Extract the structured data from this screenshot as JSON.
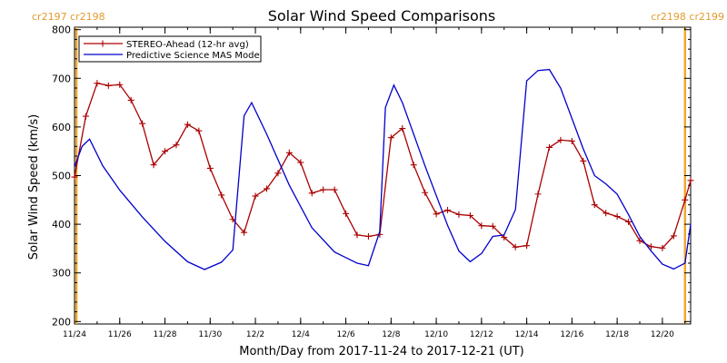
{
  "chart_data": {
    "type": "line",
    "title": "Solar Wind Speed Comparisons",
    "xlabel": "Month/Day from 2017-11-24 to 2017-12-21 (UT)",
    "ylabel": "Solar Wind Speed (km/s)",
    "xlim": [
      "2017-11-24T00:00",
      "2017-12-21T06:00"
    ],
    "ylim": [
      195,
      805
    ],
    "yticks": [
      200,
      300,
      400,
      500,
      600,
      700,
      800
    ],
    "xticks": [
      {
        "date": "2017-11-24",
        "label": "11/24"
      },
      {
        "date": "2017-11-26",
        "label": "11/26"
      },
      {
        "date": "2017-11-28",
        "label": "11/28"
      },
      {
        "date": "2017-11-30",
        "label": "11/30"
      },
      {
        "date": "2017-12-02",
        "label": "12/2"
      },
      {
        "date": "2017-12-04",
        "label": "12/4"
      },
      {
        "date": "2017-12-06",
        "label": "12/6"
      },
      {
        "date": "2017-12-08",
        "label": "12/8"
      },
      {
        "date": "2017-12-10",
        "label": "12/10"
      },
      {
        "date": "2017-12-12",
        "label": "12/12"
      },
      {
        "date": "2017-12-14",
        "label": "12/14"
      },
      {
        "date": "2017-12-16",
        "label": "12/16"
      },
      {
        "date": "2017-12-18",
        "label": "12/18"
      },
      {
        "date": "2017-12-20",
        "label": "12/20"
      }
    ],
    "carrington_left": {
      "date": "2017-11-24T02:00",
      "label": "cr2197 cr2198"
    },
    "carrington_right": {
      "date": "2017-12-21T00:00",
      "label": "cr2198 cr2199"
    },
    "legend_position": "top-left",
    "colors": {
      "stereo": "#aa0000",
      "model": "#0000cc",
      "carrington": "#f0a830"
    },
    "series": [
      {
        "name": "STEREO-Ahead (12-hr avg)",
        "marker": "plus",
        "points": [
          [
            "2017-11-24T00:00",
            497
          ],
          [
            "2017-11-24T12:00",
            622
          ],
          [
            "2017-11-25T00:00",
            690
          ],
          [
            "2017-11-25T12:00",
            685
          ],
          [
            "2017-11-26T00:00",
            687
          ],
          [
            "2017-11-26T12:00",
            655
          ],
          [
            "2017-11-27T00:00",
            607
          ],
          [
            "2017-11-27T12:00",
            522
          ],
          [
            "2017-11-28T00:00",
            550
          ],
          [
            "2017-11-28T12:00",
            563
          ],
          [
            "2017-11-29T00:00",
            605
          ],
          [
            "2017-11-29T12:00",
            592
          ],
          [
            "2017-11-30T00:00",
            515
          ],
          [
            "2017-11-30T12:00",
            460
          ],
          [
            "2017-12-01T00:00",
            410
          ],
          [
            "2017-12-01T12:00",
            383
          ],
          [
            "2017-12-02T00:00",
            458
          ],
          [
            "2017-12-02T12:00",
            473
          ],
          [
            "2017-12-03T00:00",
            505
          ],
          [
            "2017-12-03T12:00",
            547
          ],
          [
            "2017-12-04T00:00",
            527
          ],
          [
            "2017-12-04T12:00",
            464
          ],
          [
            "2017-12-05T00:00",
            471
          ],
          [
            "2017-12-05T12:00",
            471
          ],
          [
            "2017-12-06T00:00",
            422
          ],
          [
            "2017-12-06T12:00",
            378
          ],
          [
            "2017-12-07T00:00",
            375
          ],
          [
            "2017-12-07T12:00",
            379
          ],
          [
            "2017-12-08T00:00",
            578
          ],
          [
            "2017-12-08T12:00",
            597
          ],
          [
            "2017-12-09T00:00",
            522
          ],
          [
            "2017-12-09T12:00",
            465
          ],
          [
            "2017-12-10T00:00",
            421
          ],
          [
            "2017-12-10T12:00",
            429
          ],
          [
            "2017-12-11T00:00",
            420
          ],
          [
            "2017-12-11T12:00",
            418
          ],
          [
            "2017-12-12T00:00",
            397
          ],
          [
            "2017-12-12T12:00",
            396
          ],
          [
            "2017-12-13T00:00",
            373
          ],
          [
            "2017-12-13T12:00",
            353
          ],
          [
            "2017-12-14T00:00",
            356
          ],
          [
            "2017-12-14T12:00",
            462
          ],
          [
            "2017-12-15T00:00",
            558
          ],
          [
            "2017-12-15T12:00",
            573
          ],
          [
            "2017-12-16T00:00",
            571
          ],
          [
            "2017-12-16T12:00",
            530
          ],
          [
            "2017-12-17T00:00",
            440
          ],
          [
            "2017-12-17T12:00",
            423
          ],
          [
            "2017-12-18T00:00",
            416
          ],
          [
            "2017-12-18T12:00",
            405
          ],
          [
            "2017-12-19T00:00",
            366
          ],
          [
            "2017-12-19T12:00",
            354
          ],
          [
            "2017-12-20T00:00",
            351
          ],
          [
            "2017-12-20T12:00",
            376
          ],
          [
            "2017-12-21T00:00",
            450
          ],
          [
            "2017-12-21T06:00",
            490
          ]
        ]
      },
      {
        "name": "Predictive Science MAS Model",
        "marker": "none",
        "points": [
          [
            "2017-11-24T00:00",
            518
          ],
          [
            "2017-11-24T08:00",
            560
          ],
          [
            "2017-11-24T16:00",
            575
          ],
          [
            "2017-11-25T06:00",
            520
          ],
          [
            "2017-11-26T00:00",
            470
          ],
          [
            "2017-11-27T00:00",
            415
          ],
          [
            "2017-11-28T00:00",
            365
          ],
          [
            "2017-11-29T00:00",
            323
          ],
          [
            "2017-11-29T18:00",
            307
          ],
          [
            "2017-11-30T12:00",
            322
          ],
          [
            "2017-12-01T00:00",
            347
          ],
          [
            "2017-12-01T12:00",
            623
          ],
          [
            "2017-12-01T20:00",
            650
          ],
          [
            "2017-12-02T12:00",
            585
          ],
          [
            "2017-12-03T12:00",
            480
          ],
          [
            "2017-12-04T12:00",
            393
          ],
          [
            "2017-12-05T12:00",
            343
          ],
          [
            "2017-12-06T12:00",
            320
          ],
          [
            "2017-12-07T00:00",
            315
          ],
          [
            "2017-12-07T12:00",
            385
          ],
          [
            "2017-12-07T18:00",
            640
          ],
          [
            "2017-12-08T03:00",
            686
          ],
          [
            "2017-12-08T12:00",
            650
          ],
          [
            "2017-12-09T12:00",
            520
          ],
          [
            "2017-12-10T12:00",
            398
          ],
          [
            "2017-12-11T00:00",
            345
          ],
          [
            "2017-12-11T12:00",
            323
          ],
          [
            "2017-12-12T00:00",
            340
          ],
          [
            "2017-12-12T12:00",
            375
          ],
          [
            "2017-12-13T00:00",
            378
          ],
          [
            "2017-12-13T12:00",
            430
          ],
          [
            "2017-12-14T00:00",
            695
          ],
          [
            "2017-12-14T12:00",
            716
          ],
          [
            "2017-12-15T00:00",
            718
          ],
          [
            "2017-12-15T12:00",
            680
          ],
          [
            "2017-12-16T12:00",
            555
          ],
          [
            "2017-12-17T00:00",
            500
          ],
          [
            "2017-12-17T12:00",
            483
          ],
          [
            "2017-12-18T00:00",
            462
          ],
          [
            "2017-12-18T12:00",
            420
          ],
          [
            "2017-12-19T00:00",
            375
          ],
          [
            "2017-12-19T12:00",
            345
          ],
          [
            "2017-12-20T00:00",
            318
          ],
          [
            "2017-12-20T12:00",
            308
          ],
          [
            "2017-12-21T00:00",
            320
          ],
          [
            "2017-12-21T06:00",
            400
          ]
        ]
      }
    ]
  }
}
